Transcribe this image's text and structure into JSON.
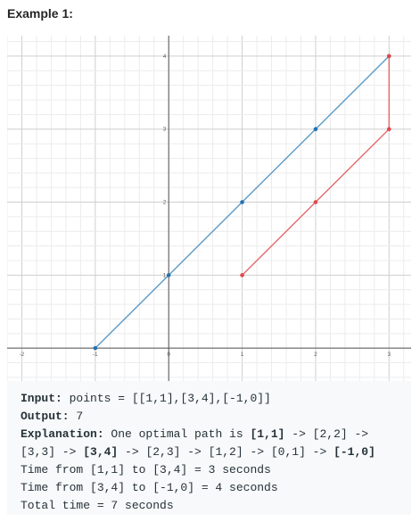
{
  "example": {
    "title": "Example 1:"
  },
  "chart_data": {
    "type": "line",
    "x_ticks": [
      -2,
      -1,
      0,
      1,
      2,
      3
    ],
    "y_ticks": [
      1,
      2,
      3,
      4
    ],
    "xlim": [
      -2.2,
      3.3
    ],
    "ylim": [
      -0.45,
      4.28
    ],
    "grid": true,
    "minor_grid_per_unit": 5,
    "series": [
      {
        "color": "#5b9bc8",
        "marker_color": "#2272b4",
        "points": [
          [
            -1,
            0
          ],
          [
            0,
            1
          ],
          [
            1,
            2
          ],
          [
            2,
            3
          ],
          [
            3,
            4
          ]
        ]
      },
      {
        "color": "#e36a6a",
        "marker_color": "#e0474c",
        "points": [
          [
            1,
            1
          ],
          [
            2,
            2
          ],
          [
            3,
            3
          ],
          [
            3,
            4
          ]
        ]
      }
    ]
  },
  "code": {
    "input_label": "Input:",
    "input_value": " points = [[1,1],[3,4],[-1,0]]",
    "output_label": "Output:",
    "output_value": " 7",
    "explanation_label": "Explanation:",
    "exp_part1": " One optimal path is ",
    "exp_b1": "[1,1]",
    "exp_part2": " -> [2,2] ->",
    "exp_part3": "[3,3] -> ",
    "exp_b2": "[3,4]",
    "exp_part4": " -> [2,3] -> [1,2] -> [0,1] -> ",
    "exp_b3": "[-1,0]",
    "line5": "Time from [1,1] to [3,4] = 3 seconds",
    "line6": "Time from [3,4] to [-1,0] = 4 seconds",
    "line7": "Total time = 7 seconds"
  }
}
